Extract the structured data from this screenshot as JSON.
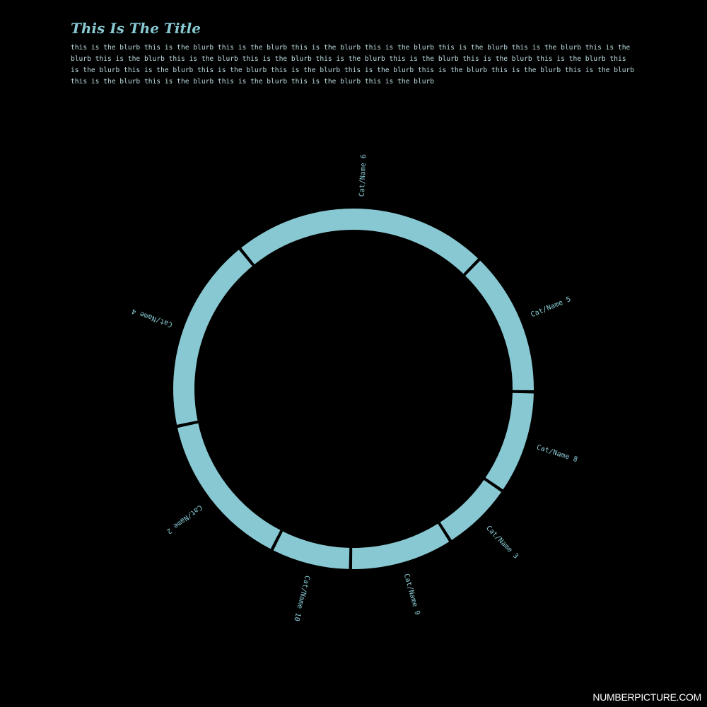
{
  "title": "This Is The Title",
  "blurb": "this is the blurb this is the blurb this is the blurb this is the blurb this is the blurb this is the blurb this is the blurb this is the blurb this is the blurb this is the blurb this is the blurb this is the blurb this is the blurb this is the blurb this is the blurb this is the blurb this is the blurb this is the blurb this is the blurb this is the blurb this is the blurb this is the blurb this is the blurb this is the blurb this is the blurb this is the blurb this is the blurb this is the blurb",
  "footer": "NUMBERPICTURE.COM",
  "colors": {
    "background": "#000000",
    "segment": "#88c8d2",
    "text": "#88c8d2"
  },
  "chart_data": {
    "type": "pie",
    "style": "ring",
    "categories": [
      "Cat/Name 6",
      "Cat/Name 5",
      "Cat/Name 8",
      "Cat/Name 3",
      "Cat/Name 9",
      "Cat/Name 10",
      "Cat/Name 2",
      "Cat/Name 4"
    ],
    "values": [
      23.1,
      13.0,
      9.3,
      6.4,
      9.3,
      7.2,
      14.2,
      17.5
    ]
  }
}
